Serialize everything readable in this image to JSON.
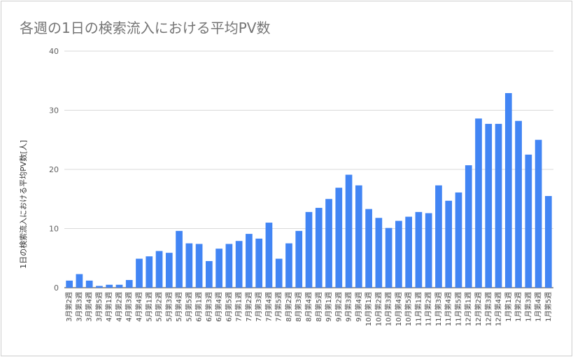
{
  "chart_data": {
    "type": "bar",
    "title": "各週の1日の検索流入における平均PV数",
    "xlabel": "",
    "ylabel": "1日の検索流入における平均PV数[人]",
    "ylim": [
      0,
      40
    ],
    "yticks": [
      0,
      10,
      20,
      30,
      40
    ],
    "grid": true,
    "legend": "none",
    "bar_color": "#4285f4",
    "categories": [
      "3月第2週",
      "3月第3週",
      "3月第4週",
      "3月第5週",
      "4月第1週",
      "4月第2週",
      "4月第3週",
      "4月第4週",
      "5月第1週",
      "5月第2週",
      "5月第3週",
      "5月第4週",
      "5月第5週",
      "6月第1週",
      "6月第3週",
      "6月第4週",
      "6月第5週",
      "7月第1週",
      "7月第2週",
      "7月第3週",
      "7月第4週",
      "7月第5週",
      "8月第2週",
      "8月第3週",
      "8月第4週",
      "8月第5週",
      "9月第1週",
      "9月第2週",
      "9月第3週",
      "9月第4週",
      "10月第1週",
      "10月第2週",
      "10月第3週",
      "10月第4週",
      "10月第5週",
      "11月第1週",
      "11月第2週",
      "11月第3週",
      "11月第4週",
      "11月第5週",
      "12月第1週",
      "12月第2週",
      "12月第3週",
      "12月第4週",
      "1月第1週",
      "1月第2週",
      "1月第3週",
      "1月第4週",
      "1月第5週"
    ],
    "values": [
      1.2,
      2.3,
      1.2,
      0.3,
      0.5,
      0.5,
      1.3,
      4.9,
      5.3,
      6.2,
      5.9,
      9.6,
      7.5,
      7.4,
      4.5,
      6.6,
      7.4,
      7.9,
      9.1,
      8.3,
      11.0,
      4.9,
      7.5,
      9.6,
      12.8,
      13.5,
      15.0,
      16.9,
      19.1,
      17.3,
      13.3,
      11.8,
      10.1,
      11.3,
      12.0,
      12.8,
      12.6,
      17.3,
      14.7,
      16.1,
      20.7,
      28.6,
      27.7,
      27.7,
      32.9,
      28.2,
      22.5,
      25.0,
      15.5
    ]
  }
}
